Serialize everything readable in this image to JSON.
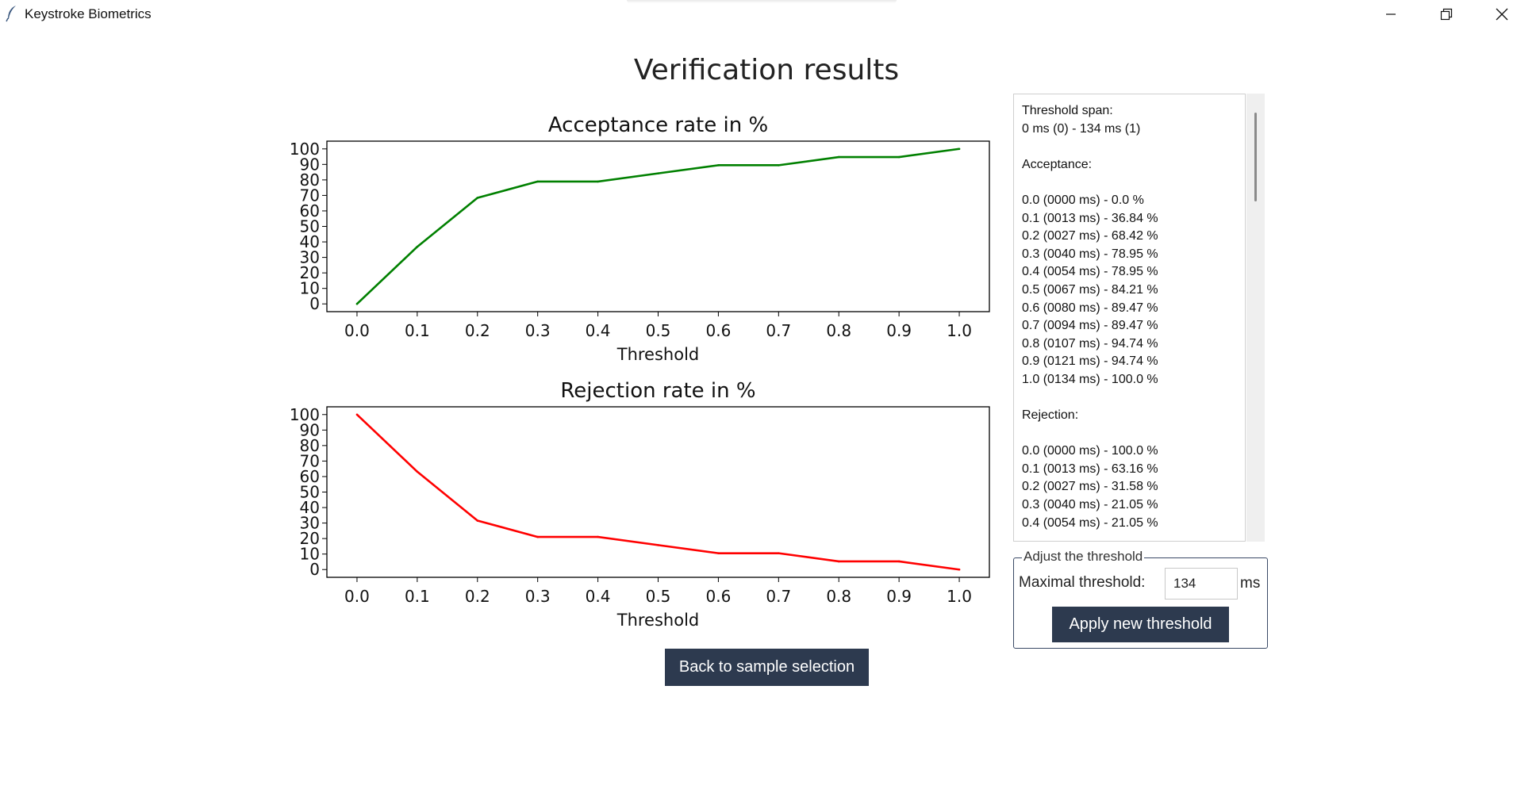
{
  "window": {
    "title": "Keystroke Biometrics",
    "app_icon": "feather-icon",
    "controls": [
      "minimize-icon",
      "restore-icon",
      "close-icon"
    ]
  },
  "page": {
    "title": "Verification results"
  },
  "colors": {
    "acceptance_line": "#008000",
    "rejection_line": "#ff0000",
    "button_bg": "#2d3a4f",
    "button_text": "#ffffff"
  },
  "chart_data": [
    {
      "type": "line",
      "title": "Acceptance rate in %",
      "xlabel": "Threshold",
      "ylabel": "",
      "x": [
        0.0,
        0.1,
        0.2,
        0.3,
        0.4,
        0.5,
        0.6,
        0.7,
        0.8,
        0.9,
        1.0
      ],
      "x_tick_labels": [
        "0.0",
        "0.1",
        "0.2",
        "0.3",
        "0.4",
        "0.5",
        "0.6",
        "0.7",
        "0.8",
        "0.9",
        "1.0"
      ],
      "y_ticks": [
        0,
        10,
        20,
        30,
        40,
        50,
        60,
        70,
        80,
        90,
        100
      ],
      "xlim": [
        -0.05,
        1.05
      ],
      "ylim": [
        -5,
        105
      ],
      "grid": false,
      "series": [
        {
          "values": [
            0.0,
            36.84,
            68.42,
            78.95,
            78.95,
            84.21,
            89.47,
            89.47,
            94.74,
            94.74,
            100.0
          ],
          "color": "#008000"
        }
      ]
    },
    {
      "type": "line",
      "title": "Rejection rate in %",
      "xlabel": "Threshold",
      "ylabel": "",
      "x": [
        0.0,
        0.1,
        0.2,
        0.3,
        0.4,
        0.5,
        0.6,
        0.7,
        0.8,
        0.9,
        1.0
      ],
      "x_tick_labels": [
        "0.0",
        "0.1",
        "0.2",
        "0.3",
        "0.4",
        "0.5",
        "0.6",
        "0.7",
        "0.8",
        "0.9",
        "1.0"
      ],
      "y_ticks": [
        0,
        10,
        20,
        30,
        40,
        50,
        60,
        70,
        80,
        90,
        100
      ],
      "xlim": [
        -0.05,
        1.05
      ],
      "ylim": [
        -5,
        105
      ],
      "grid": false,
      "series": [
        {
          "values": [
            100.0,
            63.16,
            31.58,
            21.05,
            21.05,
            15.79,
            10.53,
            10.53,
            5.26,
            5.26,
            0.0
          ],
          "color": "#ff0000"
        }
      ]
    }
  ],
  "info": {
    "text": "Threshold span:\n0 ms (0) - 134 ms (1)\n\nAcceptance:\n\n0.0 (0000 ms) - 0.0 %\n0.1 (0013 ms) - 36.84 %\n0.2 (0027 ms) - 68.42 %\n0.3 (0040 ms) - 78.95 %\n0.4 (0054 ms) - 78.95 %\n0.5 (0067 ms) - 84.21 %\n0.6 (0080 ms) - 89.47 %\n0.7 (0094 ms) - 89.47 %\n0.8 (0107 ms) - 94.74 %\n0.9 (0121 ms) - 94.74 %\n1.0 (0134 ms) - 100.0 %\n\nRejection:\n\n0.0 (0000 ms) - 100.0 %\n0.1 (0013 ms) - 63.16 %\n0.2 (0027 ms) - 31.58 %\n0.3 (0040 ms) - 21.05 %\n0.4 (0054 ms) - 21.05 %"
  },
  "threshold": {
    "group_label": "Adjust the threshold",
    "max_label": "Maximal threshold:",
    "value": "134",
    "unit": "ms",
    "apply_label": "Apply new threshold"
  },
  "back_label": "Back to sample selection"
}
